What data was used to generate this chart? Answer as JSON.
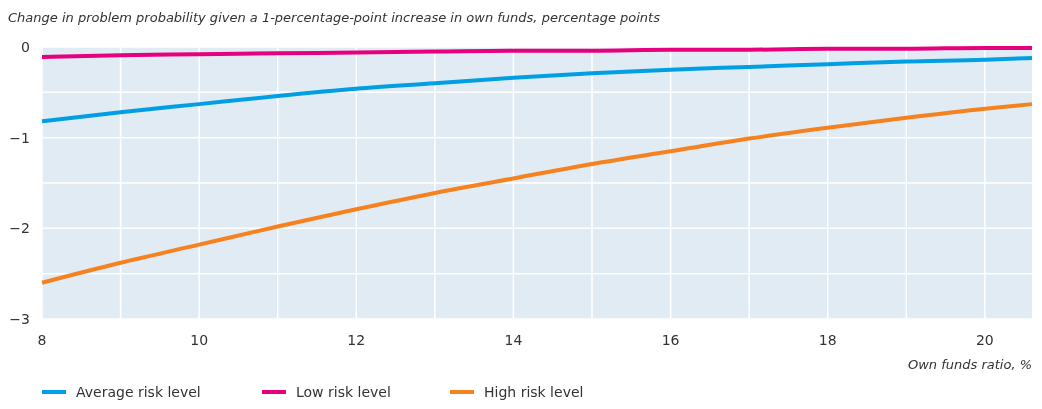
{
  "chart_data": {
    "type": "line",
    "title": "Change in problem probability given a 1-percentage-point increase in own funds, percentage points",
    "xlabel": "Own funds ratio, %",
    "x": [
      8,
      9,
      10,
      11,
      12,
      13,
      14,
      15,
      16,
      17,
      18,
      19,
      20,
      20.6
    ],
    "xlim": [
      8,
      20.6
    ],
    "xticks": [
      8,
      {
        "value": 9,
        "label": null
      },
      10,
      {
        "value": 11,
        "label": null
      },
      12,
      {
        "value": 13,
        "label": null
      },
      14,
      {
        "value": 15,
        "label": null
      },
      16,
      {
        "value": 17,
        "label": null
      },
      18,
      {
        "value": 19,
        "label": null
      },
      20
    ],
    "ylim": [
      -3,
      0
    ],
    "yticks": [
      {
        "value": -3,
        "label": "−3"
      },
      {
        "value": -2.5,
        "label": null
      },
      {
        "value": -2,
        "label": "−2"
      },
      {
        "value": -1.5,
        "label": null
      },
      {
        "value": -1,
        "label": "−1"
      },
      {
        "value": -0.5,
        "label": null
      },
      0
    ],
    "grid": true,
    "legend": "bottom",
    "line_style": "solid",
    "series": [
      {
        "name": "Average risk level",
        "color": "#009fe3",
        "values": [
          -0.82,
          -0.72,
          -0.63,
          -0.54,
          -0.46,
          -0.4,
          -0.34,
          -0.29,
          -0.25,
          -0.22,
          -0.19,
          -0.16,
          -0.14,
          -0.12
        ]
      },
      {
        "name": "Low risk level",
        "color": "#e6007e",
        "values": [
          -0.11,
          -0.09,
          -0.08,
          -0.07,
          -0.06,
          -0.05,
          -0.04,
          -0.04,
          -0.03,
          -0.03,
          -0.02,
          -0.02,
          -0.01,
          -0.01
        ]
      },
      {
        "name": "High risk level",
        "color": "#f5821f",
        "values": [
          -2.6,
          -2.38,
          -2.18,
          -1.98,
          -1.79,
          -1.61,
          -1.45,
          -1.29,
          -1.15,
          -1.01,
          -0.89,
          -0.78,
          -0.68,
          -0.63
        ]
      }
    ]
  }
}
